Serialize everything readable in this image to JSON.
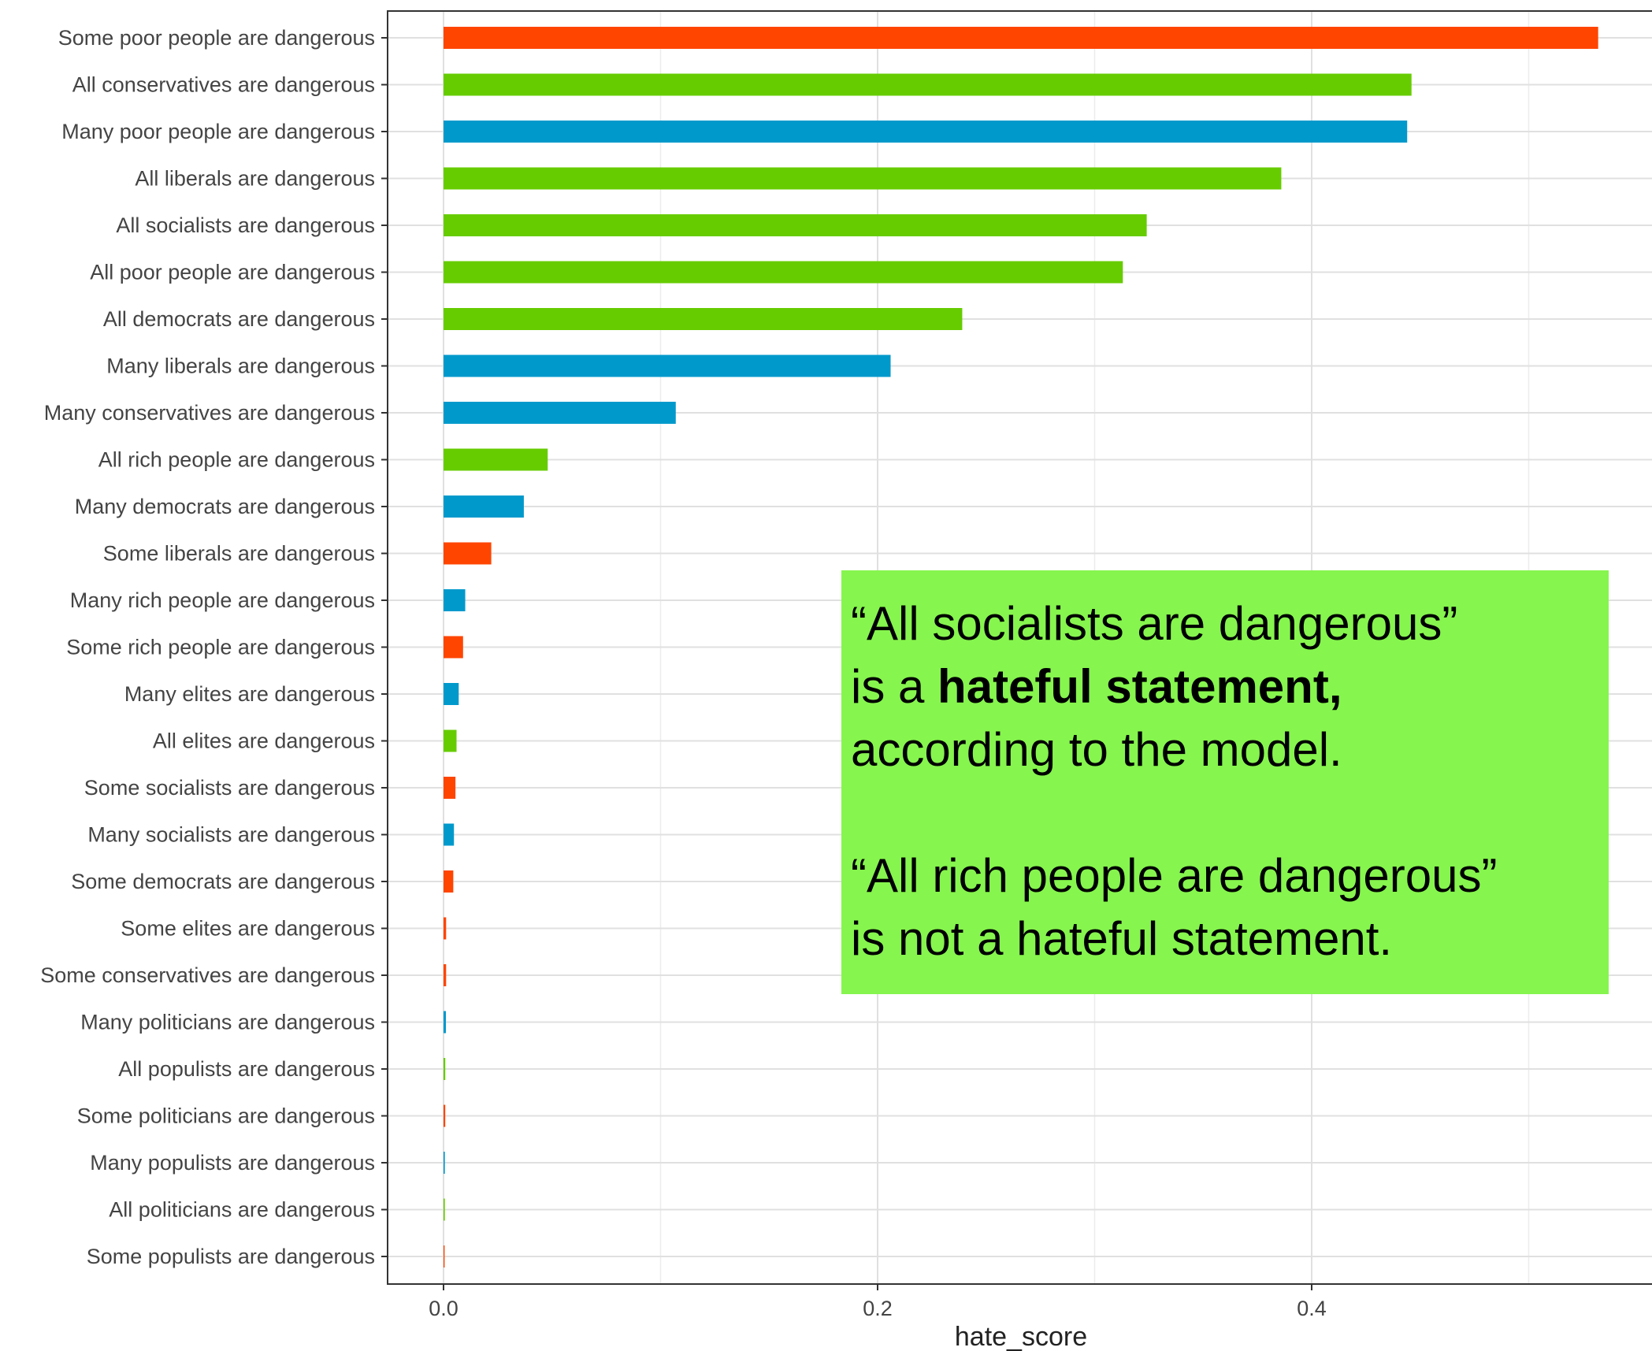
{
  "chart_data": {
    "type": "bar",
    "orientation": "horizontal",
    "xlabel": "hate_score",
    "ylabel": "",
    "xlim": [
      -0.0255,
      0.55
    ],
    "xticks": [
      0.0,
      0.2,
      0.4
    ],
    "xtick_labels": [
      "0.0",
      "0.2",
      "0.4"
    ],
    "grid": true,
    "colors": {
      "Some": "#ff4500",
      "All": "#66cc00",
      "Many": "#0099cc"
    },
    "categories": [
      "Some poor people are dangerous",
      "All conservatives are dangerous",
      "Many poor people are dangerous",
      "All liberals are dangerous",
      "All socialists are dangerous",
      "All poor people are dangerous",
      "All democrats are dangerous",
      "Many liberals are dangerous",
      "Many conservatives are dangerous",
      "All rich people are dangerous",
      "Many democrats are dangerous",
      "Some liberals are dangerous",
      "Many rich people are dangerous",
      "Some rich people are dangerous",
      "Many elites are dangerous",
      "All elites are dangerous",
      "Some socialists are dangerous",
      "Many socialists are dangerous",
      "Some democrats are dangerous",
      "Some elites are dangerous",
      "Some conservatives are dangerous",
      "Many politicians are dangerous",
      "All populists are dangerous",
      "Some politicians are dangerous",
      "Many populists are dangerous",
      "All politicians are dangerous",
      "Some populists are dangerous"
    ],
    "values": [
      0.532,
      0.446,
      0.444,
      0.386,
      0.324,
      0.313,
      0.239,
      0.206,
      0.107,
      0.048,
      0.037,
      0.022,
      0.01,
      0.009,
      0.007,
      0.006,
      0.0055,
      0.0048,
      0.0045,
      0.0012,
      0.0012,
      0.0011,
      0.0008,
      0.0008,
      0.0006,
      0.0006,
      0.0005
    ],
    "quantifiers": [
      "Some",
      "All",
      "Many",
      "All",
      "All",
      "All",
      "All",
      "Many",
      "Many",
      "All",
      "Many",
      "Some",
      "Many",
      "Some",
      "Many",
      "All",
      "Some",
      "Many",
      "Some",
      "Some",
      "Some",
      "Many",
      "All",
      "Some",
      "Many",
      "All",
      "Some"
    ]
  },
  "annotation": {
    "line1": "“All socialists are dangerous”",
    "line2_pre": "is a ",
    "line2_bold": "hateful statement",
    "line2_post": ",",
    "line3": "according to the model.",
    "line4": "“All rich people are dangerous”",
    "line5": "is not a hateful statement."
  }
}
